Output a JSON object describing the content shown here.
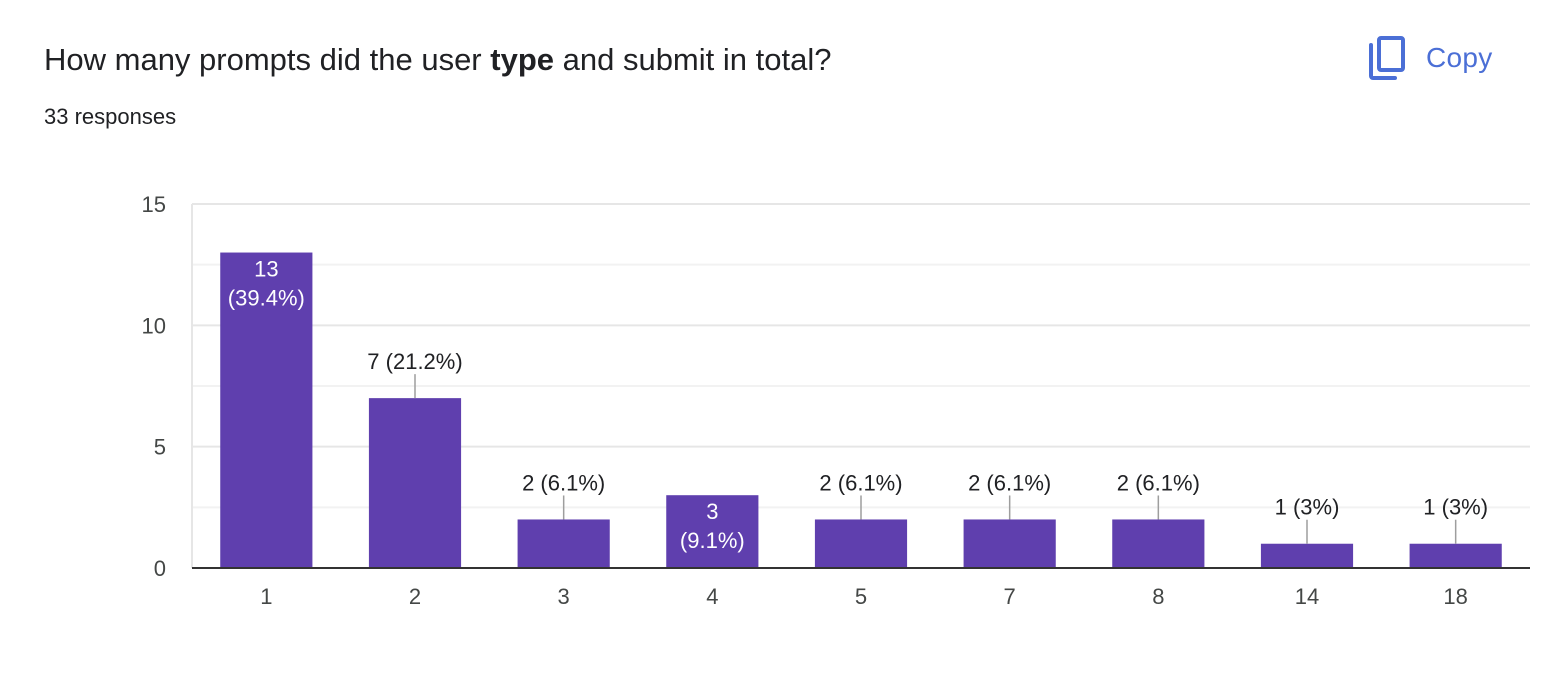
{
  "question": {
    "text_before": "How many prompts did the user ",
    "text_bold": "type",
    "text_after": " and submit in total?"
  },
  "responses_text": "33 responses",
  "copy_button": {
    "label": "Copy",
    "icon": "copy-icon"
  },
  "colors": {
    "bar": "#5f3fae",
    "accent": "#4b6fd6"
  },
  "chart_data": {
    "type": "bar",
    "categories": [
      "1",
      "2",
      "3",
      "4",
      "5",
      "7",
      "8",
      "14",
      "18"
    ],
    "values": [
      13,
      7,
      2,
      3,
      2,
      2,
      2,
      1,
      1
    ],
    "data_labels": [
      "13 (39.4%)",
      "7 (21.2%)",
      "2 (6.1%)",
      "3 (9.1%)",
      "2 (6.1%)",
      "2 (6.1%)",
      "2 (6.1%)",
      "1 (3%)",
      "1 (3%)"
    ],
    "label_inside": [
      true,
      false,
      false,
      true,
      false,
      false,
      false,
      false,
      false
    ],
    "ylim": [
      0,
      15
    ],
    "yticks": [
      0,
      5,
      10,
      15
    ],
    "grid": true,
    "legend": "none"
  }
}
